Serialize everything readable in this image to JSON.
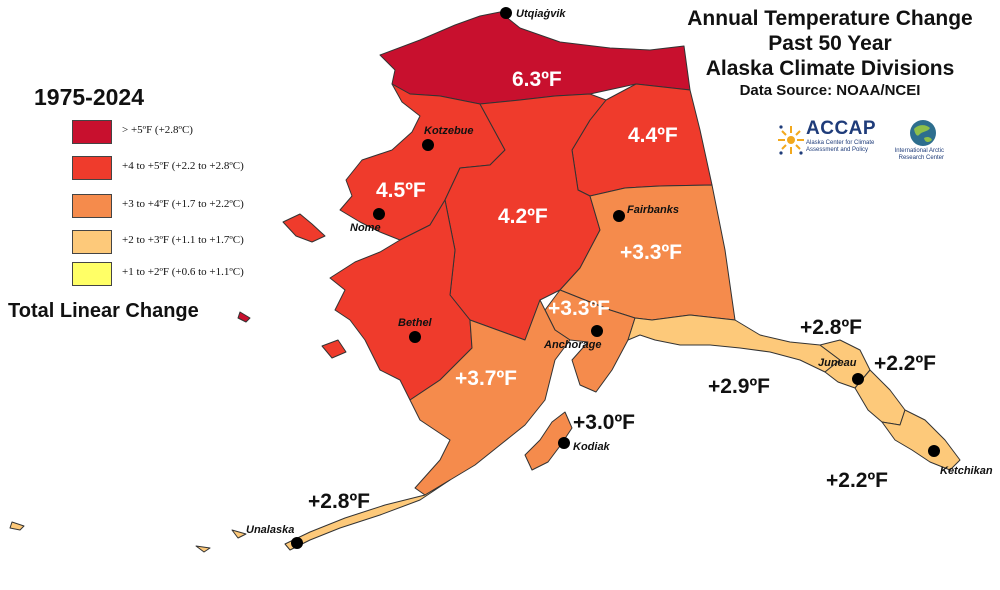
{
  "title": {
    "line1": "Annual Temperature Change",
    "line2": "Past 50 Year",
    "line3": "Alaska Climate Divisions",
    "source": "Data Source: NOAA/NCEI"
  },
  "legend": {
    "period": "1975-2024",
    "total_label": "Total Linear Change",
    "items": [
      {
        "label": "> +5ºF (+2.8ºC)",
        "color": "#c8102e"
      },
      {
        "label": "+4 to +5ºF (+2.2 to +2.8ºC)",
        "color": "#ef3b2c"
      },
      {
        "label": "+3 to +4ºF (+1.7 to +2.2ºC)",
        "color": "#f58b4c"
      },
      {
        "label": "+2 to +3ºF (+1.1 to +1.7ºC)",
        "color": "#fdc97a"
      },
      {
        "label": "+1 to +2ºF (+0.6 to +1.1ºC)",
        "color": "#ffff66"
      }
    ]
  },
  "divisions": [
    {
      "id": "north-slope",
      "value": "6.3ºF",
      "band": 0
    },
    {
      "id": "northeast-interior",
      "value": "4.4ºF",
      "band": 1
    },
    {
      "id": "west-coast",
      "value": "4.5ºF",
      "band": 1
    },
    {
      "id": "central-interior",
      "value": "4.2ºF",
      "band": 1
    },
    {
      "id": "southeast-interior",
      "value": "+3.3ºF",
      "band": 2
    },
    {
      "id": "cook-inlet",
      "value": "+3.3ºF",
      "band": 2
    },
    {
      "id": "bristol-bay",
      "value": "+3.7ºF",
      "band": 2
    },
    {
      "id": "kodiak",
      "value": "+3.0ºF",
      "band": 2
    },
    {
      "id": "aleutians",
      "value": "+2.8ºF",
      "band": 3
    },
    {
      "id": "northeast-gulf",
      "value": "+2.9ºF",
      "band": 3
    },
    {
      "id": "north-panhandle",
      "value": "+2.8ºF",
      "band": 3
    },
    {
      "id": "central-panhandle",
      "value": "+2.2ºF",
      "band": 3
    },
    {
      "id": "south-panhandle",
      "value": "+2.2ºF",
      "band": 3
    }
  ],
  "cities": [
    "Utqiaġvik",
    "Kotzebue",
    "Nome",
    "Fairbanks",
    "Bethel",
    "Anchorage",
    "Kodiak",
    "Juneau",
    "Ketchikan",
    "Unalaska"
  ],
  "logos": {
    "accap_name": "ACCAP",
    "accap_sub": "Alaska Center for Climate Assessment and Policy",
    "iarc_text": "International Arctic Research Center"
  }
}
